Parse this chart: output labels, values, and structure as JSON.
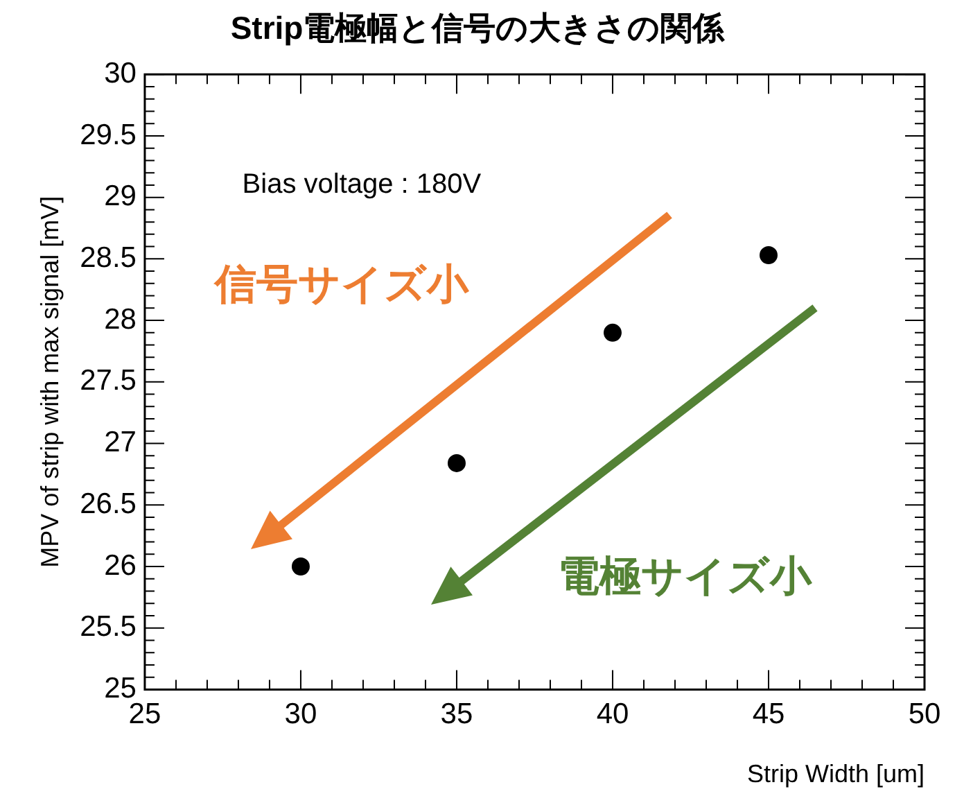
{
  "chart_data": {
    "type": "scatter",
    "title": "Strip電極幅と信号の大きさの関係",
    "xlabel": "Strip Width [um]",
    "ylabel": "MPV of strip with max signal [mV]",
    "x": [
      30,
      35,
      40,
      45
    ],
    "series": [
      {
        "color": "#000000",
        "values": [
          26.0,
          26.84,
          27.9,
          28.53
        ]
      }
    ],
    "marker": "circle",
    "xlim": [
      25,
      50
    ],
    "xticks": [
      25,
      30,
      35,
      40,
      45,
      50
    ],
    "ylim": [
      25,
      30
    ],
    "yticks": [
      25,
      25.5,
      26,
      26.5,
      27,
      27.5,
      28,
      28.5,
      29,
      29.5,
      30
    ],
    "annotations": [
      "Bias voltage : 180V",
      "信号サイズ小",
      "電極サイズ小"
    ]
  }
}
